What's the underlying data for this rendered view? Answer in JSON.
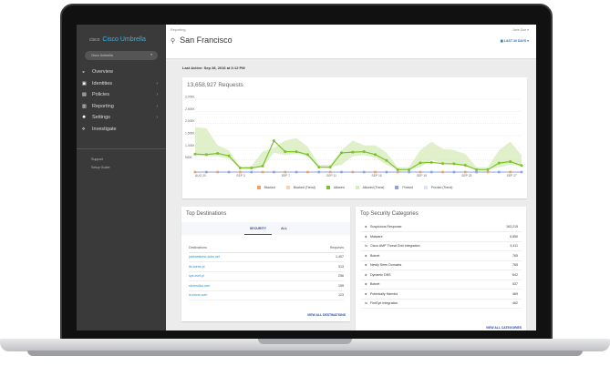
{
  "sidebar": {
    "brand": "Cisco Umbrella",
    "brand_mark": "cisco",
    "org": "Cisco Umbrella",
    "items": [
      {
        "label": "Overview",
        "icon": "dashboard-icon",
        "chevron": false
      },
      {
        "label": "Identities",
        "icon": "id-card-icon",
        "chevron": true
      },
      {
        "label": "Policies",
        "icon": "policy-icon",
        "chevron": true
      },
      {
        "label": "Reporting",
        "icon": "report-icon",
        "chevron": true
      },
      {
        "label": "Settings",
        "icon": "gear-icon",
        "chevron": true
      },
      {
        "label": "Investigate",
        "icon": "investigate-icon",
        "chevron": false
      }
    ],
    "footer": [
      "Support",
      "Setup Guide"
    ]
  },
  "header": {
    "breadcrumb": "Reporting",
    "title": "San Francisco",
    "user": "Jane Doe ▾",
    "range": "LAST 30 DAYS ▾"
  },
  "last_active": "Last Active: Sep 28, 2016 at 3:12 PM",
  "chart_data": {
    "type": "line",
    "title": "13,658,927 Requests",
    "ylim": [
      0,
      3000
    ],
    "yticks": [
      "500K",
      "1,000K",
      "1,500K",
      "2,000K",
      "2,500K",
      "3,000K"
    ],
    "xticks": [
      "AUG 30",
      "SEP 3",
      "SEP 7",
      "SEP 11",
      "SEP 15",
      "SEP 19",
      "SEP 23",
      "SEP 27"
    ],
    "x": [
      "Aug 30",
      "Aug 31",
      "Sep 1",
      "Sep 2",
      "Sep 3",
      "Sep 4",
      "Sep 5",
      "Sep 6",
      "Sep 7",
      "Sep 8",
      "Sep 9",
      "Sep 10",
      "Sep 11",
      "Sep 12",
      "Sep 13",
      "Sep 14",
      "Sep 15",
      "Sep 16",
      "Sep 17",
      "Sep 18",
      "Sep 19",
      "Sep 20",
      "Sep 21",
      "Sep 22",
      "Sep 23",
      "Sep 24",
      "Sep 25",
      "Sep 26",
      "Sep 27",
      "Sep 28"
    ],
    "series": [
      {
        "name": "Blocked",
        "color": "#f0a060",
        "values": [
          0,
          0,
          0,
          0,
          0,
          0,
          0,
          0,
          0,
          0,
          0,
          0,
          0,
          0,
          0,
          0,
          0,
          0,
          0,
          0,
          0,
          0,
          0,
          0,
          0,
          0,
          0,
          0,
          0,
          0
        ]
      },
      {
        "name": "Allowed",
        "color": "#7cc22a",
        "values": [
          740,
          720,
          770,
          670,
          170,
          170,
          250,
          1290,
          840,
          840,
          720,
          200,
          200,
          790,
          820,
          840,
          720,
          480,
          100,
          100,
          380,
          400,
          350,
          340,
          280,
          100,
          100,
          370,
          430,
          270
        ]
      },
      {
        "name": "Proxied",
        "color": "#8aa4e0",
        "values": [
          0,
          0,
          0,
          0,
          0,
          0,
          0,
          0,
          0,
          0,
          0,
          0,
          0,
          0,
          0,
          0,
          0,
          0,
          0,
          0,
          0,
          0,
          0,
          0,
          0,
          0,
          0,
          0,
          0,
          0
        ]
      }
    ],
    "allowed_trend_band": {
      "low": [
        700,
        650,
        650,
        550,
        150,
        150,
        200,
        800,
        700,
        750,
        650,
        200,
        200,
        300,
        650,
        700,
        600,
        300,
        100,
        100,
        200,
        500,
        350,
        300,
        250,
        100,
        100,
        200,
        300,
        250
      ],
      "high": [
        1850,
        1800,
        1100,
        900,
        200,
        250,
        850,
        1000,
        1300,
        1400,
        1050,
        300,
        300,
        900,
        1300,
        1100,
        1100,
        800,
        200,
        200,
        900,
        1250,
        950,
        900,
        750,
        200,
        200,
        900,
        1250,
        700
      ]
    },
    "legend": [
      {
        "label": "Blocked",
        "color": "#f0a060"
      },
      {
        "label": "Blocked (Trend)",
        "color": "#fbd3b4"
      },
      {
        "label": "Allowed",
        "color": "#7cc22a"
      },
      {
        "label": "Allowed (Trend)",
        "color": "#d7ecbd"
      },
      {
        "label": "Proxied",
        "color": "#8aa4e0"
      },
      {
        "label": "Proxied (Trend)",
        "color": "#dbe4f6"
      }
    ],
    "grid": true,
    "legend_position": "bottom"
  },
  "destinations": {
    "title": "Top Destinations",
    "tabs": [
      "SECURITY",
      "ALL"
    ],
    "active_tab": "SECURITY",
    "col_dest": "Destinations",
    "col_req": "Requests",
    "rows": [
      {
        "name": "justmestone.dchs.net",
        "value": "1,407"
      },
      {
        "name": "its.brenz.pl",
        "value": "313"
      },
      {
        "name": "sys.zsef.pl",
        "value": "256"
      },
      {
        "name": "stormolka.com",
        "value": "159"
      },
      {
        "name": "st.ztone.com",
        "value": "123"
      }
    ],
    "more": "VIEW ALL DESTINATIONS"
  },
  "categories": {
    "title": "Top Security Categories",
    "rows": [
      {
        "name": "Suspicious Response",
        "value": "163,215",
        "icon": "tag-icon"
      },
      {
        "name": "Malware",
        "value": "5,850",
        "icon": "tag-icon"
      },
      {
        "name": "Cisco AMP Threat Grid Integration",
        "value": "3,411",
        "icon": "integration-icon"
      },
      {
        "name": "Botnet",
        "value": "765",
        "icon": "tag-icon"
      },
      {
        "name": "Newly Seen Domains",
        "value": "765",
        "icon": "tag-icon"
      },
      {
        "name": "Dynamic DNS",
        "value": "642",
        "icon": "tag-icon"
      },
      {
        "name": "Botnet",
        "value": "537",
        "icon": "tag-icon"
      },
      {
        "name": "Potentially Harmful",
        "value": "469",
        "icon": "tag-icon"
      },
      {
        "name": "FireEye Integration",
        "value": "462",
        "icon": "integration-icon"
      }
    ],
    "more": "VIEW ALL CATEGORIES"
  }
}
